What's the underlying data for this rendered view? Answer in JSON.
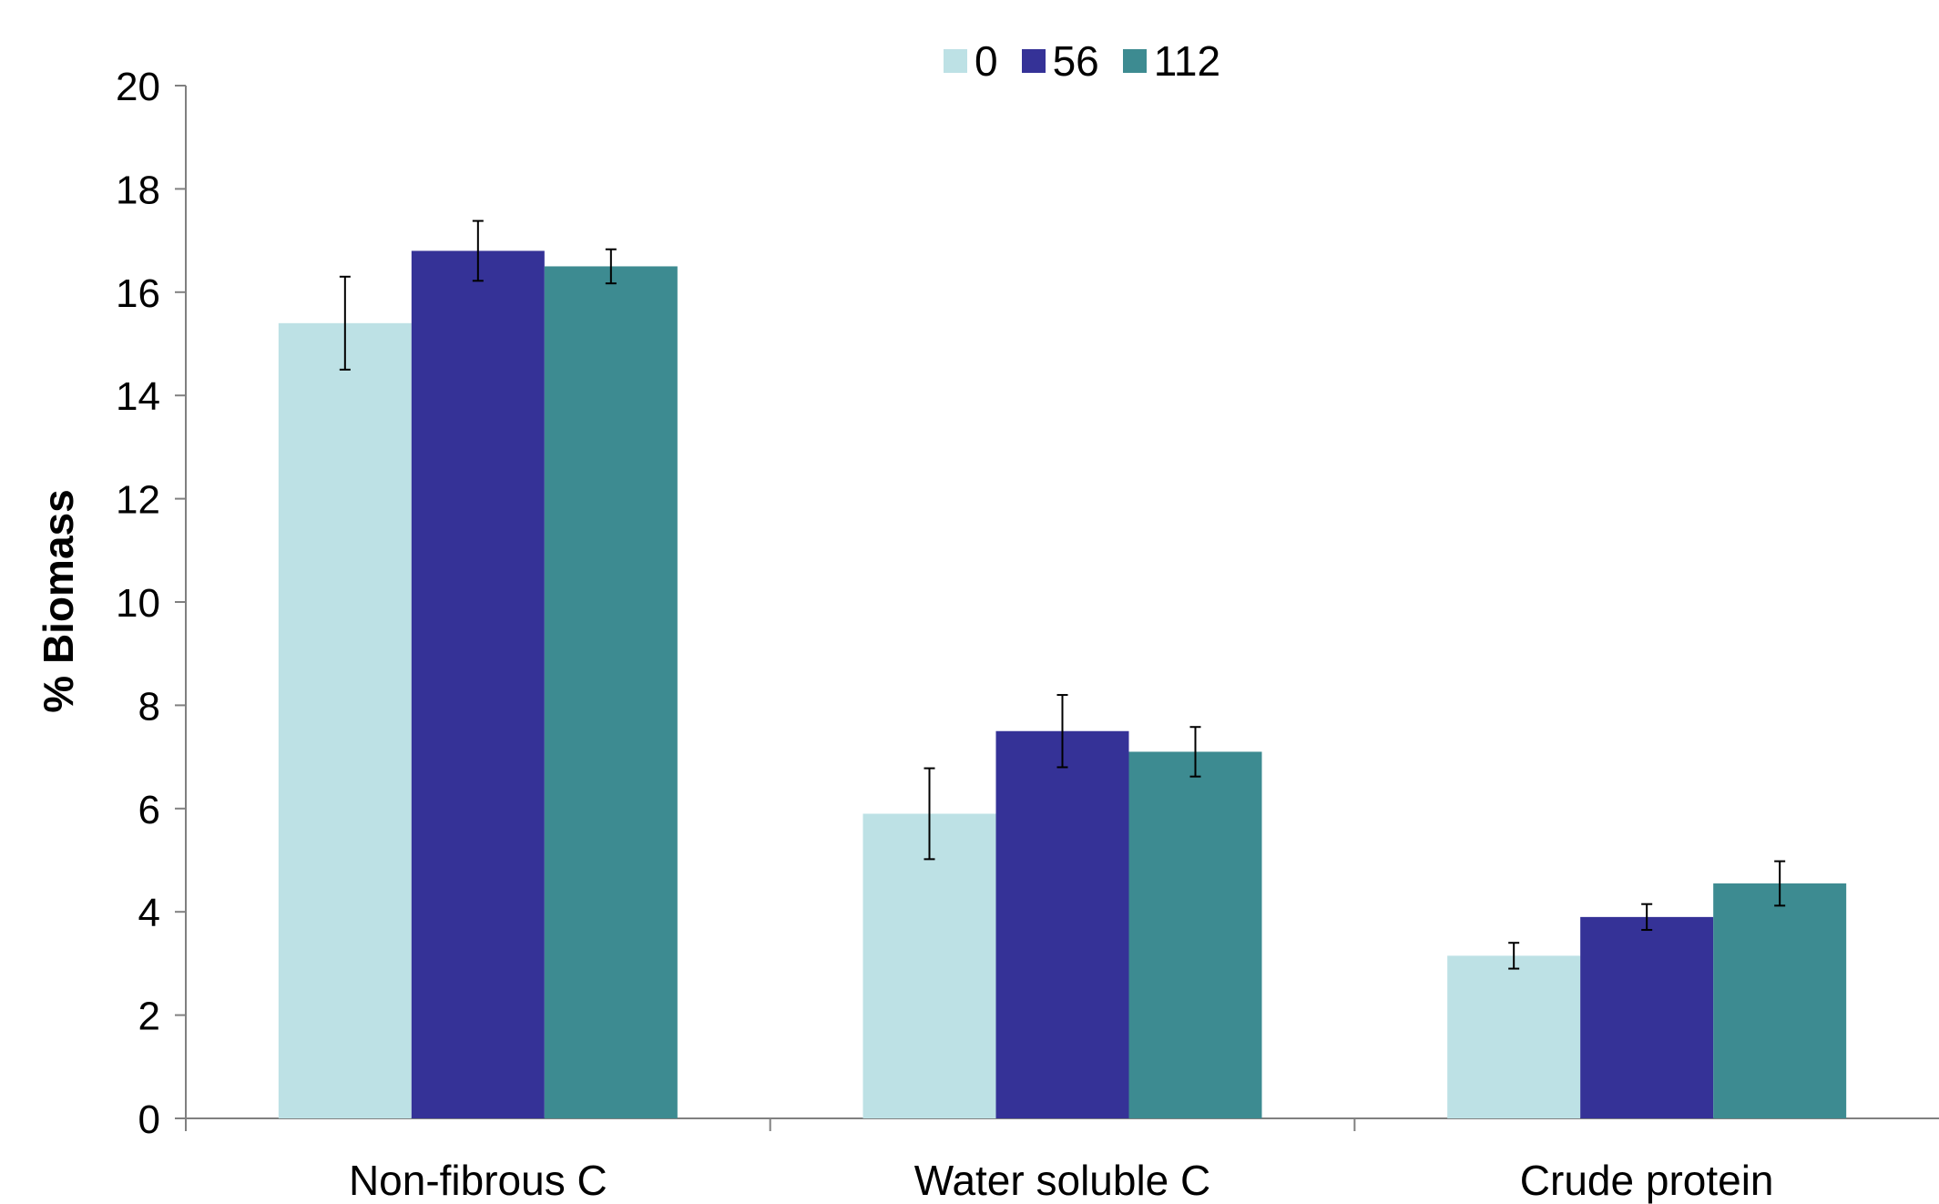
{
  "chart_data": {
    "type": "bar",
    "title": "",
    "xlabel": "",
    "ylabel": "% Biomass",
    "ylim": [
      0,
      20
    ],
    "yticks": [
      0,
      2,
      4,
      6,
      8,
      10,
      12,
      14,
      16,
      18,
      20
    ],
    "categories": [
      "Non-fibrous C",
      "Water soluble C",
      "Crude protein"
    ],
    "legend_position": "top-center",
    "grid": false,
    "series": [
      {
        "name": "0",
        "color": "#bde1e5",
        "values": [
          15.4,
          5.9,
          3.15
        ],
        "errors": [
          0.9,
          0.88,
          0.25
        ]
      },
      {
        "name": "56",
        "color": "#353297",
        "values": [
          16.8,
          7.5,
          3.9
        ],
        "errors": [
          0.58,
          0.7,
          0.25
        ]
      },
      {
        "name": "112",
        "color": "#3d8b91",
        "values": [
          16.5,
          7.1,
          4.55
        ],
        "errors": [
          0.33,
          0.48,
          0.43
        ]
      }
    ]
  }
}
